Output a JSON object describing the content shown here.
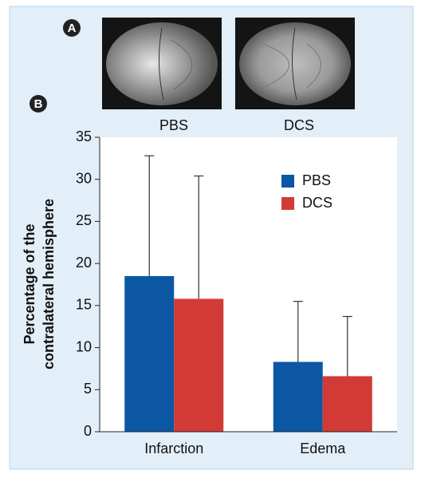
{
  "panel_labels": [
    "A",
    "B"
  ],
  "image_captions": [
    "PBS",
    "DCS"
  ],
  "chart_data": {
    "type": "bar",
    "y_label": [
      "Percentage of the",
      "contralateral hemisphere"
    ],
    "categories": [
      "Infarction",
      "Edema"
    ],
    "series": [
      {
        "name": "PBS",
        "color": "#0b57a4",
        "values": [
          18.5,
          8.3
        ],
        "errors": [
          14.3,
          7.2
        ]
      },
      {
        "name": "DCS",
        "color": "#d23a36",
        "values": [
          15.8,
          6.6
        ],
        "errors": [
          14.6,
          7.1
        ]
      }
    ],
    "ylim": [
      0,
      35
    ],
    "yticks": [
      0,
      5,
      10,
      15,
      20,
      25,
      30,
      35
    ],
    "grid": false,
    "legend": "upper right"
  }
}
